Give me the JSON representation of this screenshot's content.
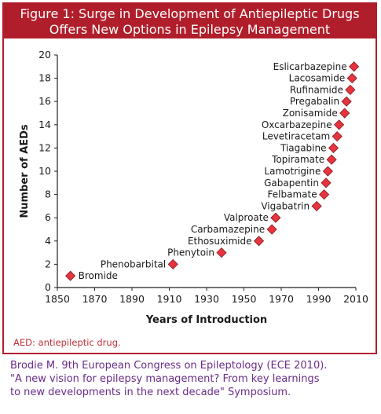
{
  "figure": {
    "title_line1": "Figure 1: Surge in Development of Antiepileptic Drugs",
    "title_line2": "Offers New Options in Epilepsy Management",
    "footnote": "AED: antiepileptic drug.",
    "citation_line1": "Brodie M. 9th European Congress on Epileptology (ECE 2010).",
    "citation_line2": "\"A new vision for epilepsy management? From key learnings",
    "citation_line3": "to new developments in the next decade\" Symposium.",
    "header_color": "#b11e2b",
    "marker_color": "#e8343f",
    "citation_color": "#6a2c8a"
  },
  "chart_data": {
    "type": "scatter",
    "title": "",
    "xlabel": "Years of Introduction",
    "ylabel": "Number of AEDs",
    "xlim": [
      1850,
      2010
    ],
    "ylim": [
      0,
      20
    ],
    "xticks": [
      1850,
      1870,
      1890,
      1910,
      1930,
      1950,
      1970,
      1990,
      2010
    ],
    "yticks": [
      0,
      2,
      4,
      6,
      8,
      10,
      12,
      14,
      16,
      18,
      20
    ],
    "grid": false,
    "points": [
      {
        "label": "Bromide",
        "x": 1857,
        "y": 1
      },
      {
        "label": "Phenobarbital",
        "x": 1912,
        "y": 2
      },
      {
        "label": "Phenytoin",
        "x": 1938,
        "y": 3
      },
      {
        "label": "Ethosuximide",
        "x": 1958,
        "y": 4
      },
      {
        "label": "Carbamazepine",
        "x": 1965,
        "y": 5
      },
      {
        "label": "Valproate",
        "x": 1967,
        "y": 6
      },
      {
        "label": "Vigabatrin",
        "x": 1989,
        "y": 7
      },
      {
        "label": "Felbamate",
        "x": 1993,
        "y": 8
      },
      {
        "label": "Gabapentin",
        "x": 1994,
        "y": 9
      },
      {
        "label": "Lamotrigine",
        "x": 1995,
        "y": 10
      },
      {
        "label": "Topiramate",
        "x": 1997,
        "y": 11
      },
      {
        "label": "Tiagabine",
        "x": 1998,
        "y": 12
      },
      {
        "label": "Levetiracetam",
        "x": 2000,
        "y": 13
      },
      {
        "label": "Oxcarbazepine",
        "x": 2001,
        "y": 14
      },
      {
        "label": "Zonisamide",
        "x": 2004,
        "y": 15
      },
      {
        "label": "Pregabalin",
        "x": 2005,
        "y": 16
      },
      {
        "label": "Rufinamide",
        "x": 2007,
        "y": 17
      },
      {
        "label": "Lacosamide",
        "x": 2008,
        "y": 18
      },
      {
        "label": "Eslicarbazepine",
        "x": 2009,
        "y": 19
      }
    ]
  }
}
